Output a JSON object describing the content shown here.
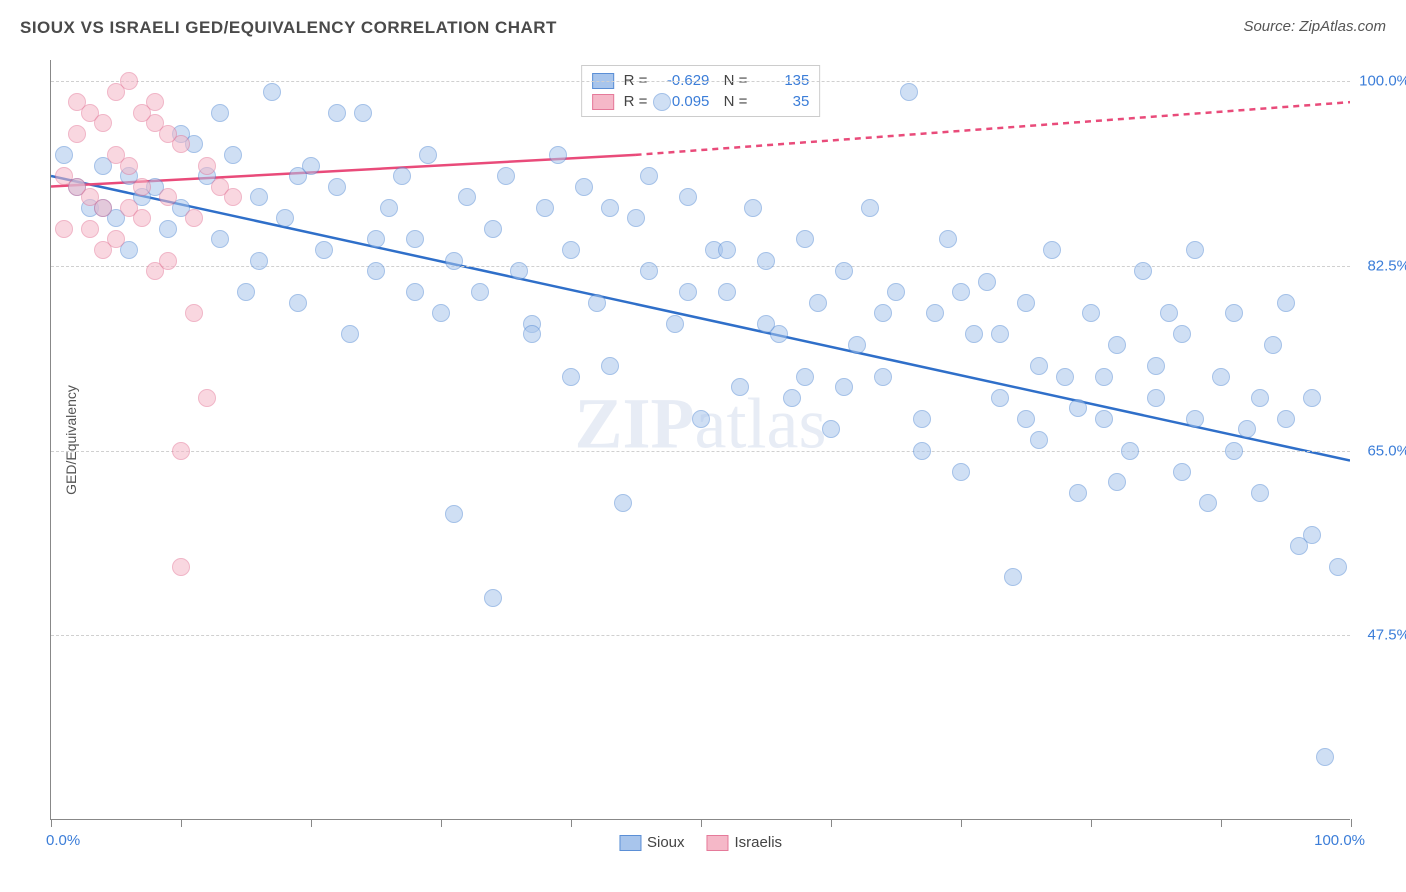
{
  "title": "SIOUX VS ISRAELI GED/EQUIVALENCY CORRELATION CHART",
  "source": "Source: ZipAtlas.com",
  "watermark": "ZIPatlas",
  "chart": {
    "type": "scatter",
    "y_axis_label": "GED/Equivalency",
    "x_start_label": "0.0%",
    "x_end_label": "100.0%",
    "xlim": [
      0,
      100
    ],
    "ylim": [
      30,
      102
    ],
    "y_gridlines": [
      47.5,
      65.0,
      82.5,
      100.0
    ],
    "y_tick_labels": [
      "47.5%",
      "65.0%",
      "82.5%",
      "100.0%"
    ],
    "y_tick_color": "#3b7dd8",
    "x_tick_positions": [
      0,
      10,
      20,
      30,
      40,
      50,
      60,
      70,
      80,
      90,
      100
    ],
    "grid_color": "#d0d0d0",
    "background_color": "#ffffff",
    "series": [
      {
        "name": "Sioux",
        "fill_color": "#a8c5ec",
        "stroke_color": "#5b8fd6",
        "line_color": "#2f6fc9",
        "R": "-0.629",
        "N": "135",
        "regression": {
          "x1": 0,
          "y1": 91,
          "x2": 100,
          "y2": 64,
          "dash": false
        },
        "points": [
          [
            2,
            90
          ],
          [
            3,
            88
          ],
          [
            4,
            92
          ],
          [
            5,
            87
          ],
          [
            6,
            91
          ],
          [
            7,
            89
          ],
          [
            8,
            90
          ],
          [
            9,
            86
          ],
          [
            10,
            88
          ],
          [
            11,
            94
          ],
          [
            12,
            91
          ],
          [
            13,
            85
          ],
          [
            14,
            93
          ],
          [
            15,
            80
          ],
          [
            16,
            89
          ],
          [
            17,
            99
          ],
          [
            18,
            87
          ],
          [
            19,
            79
          ],
          [
            20,
            92
          ],
          [
            21,
            84
          ],
          [
            22,
            90
          ],
          [
            23,
            76
          ],
          [
            24,
            97
          ],
          [
            25,
            82
          ],
          [
            26,
            88
          ],
          [
            27,
            91
          ],
          [
            28,
            85
          ],
          [
            29,
            93
          ],
          [
            30,
            78
          ],
          [
            31,
            59
          ],
          [
            32,
            89
          ],
          [
            33,
            80
          ],
          [
            34,
            51
          ],
          [
            35,
            91
          ],
          [
            36,
            82
          ],
          [
            37,
            77
          ],
          [
            38,
            88
          ],
          [
            39,
            93
          ],
          [
            40,
            84
          ],
          [
            41,
            90
          ],
          [
            42,
            79
          ],
          [
            43,
            73
          ],
          [
            44,
            60
          ],
          [
            45,
            87
          ],
          [
            46,
            82
          ],
          [
            47,
            98
          ],
          [
            48,
            77
          ],
          [
            49,
            89
          ],
          [
            50,
            68
          ],
          [
            51,
            84
          ],
          [
            52,
            80
          ],
          [
            53,
            71
          ],
          [
            54,
            88
          ],
          [
            55,
            83
          ],
          [
            56,
            76
          ],
          [
            57,
            70
          ],
          [
            58,
            85
          ],
          [
            59,
            79
          ],
          [
            60,
            67
          ],
          [
            61,
            82
          ],
          [
            62,
            75
          ],
          [
            63,
            88
          ],
          [
            64,
            72
          ],
          [
            65,
            80
          ],
          [
            66,
            99
          ],
          [
            67,
            68
          ],
          [
            68,
            78
          ],
          [
            69,
            85
          ],
          [
            70,
            63
          ],
          [
            71,
            76
          ],
          [
            72,
            81
          ],
          [
            73,
            70
          ],
          [
            74,
            53
          ],
          [
            75,
            79
          ],
          [
            76,
            66
          ],
          [
            77,
            84
          ],
          [
            78,
            72
          ],
          [
            79,
            61
          ],
          [
            80,
            78
          ],
          [
            81,
            68
          ],
          [
            82,
            75
          ],
          [
            83,
            65
          ],
          [
            84,
            82
          ],
          [
            85,
            70
          ],
          [
            86,
            78
          ],
          [
            87,
            63
          ],
          [
            88,
            84
          ],
          [
            89,
            60
          ],
          [
            90,
            72
          ],
          [
            91,
            78
          ],
          [
            92,
            67
          ],
          [
            93,
            61
          ],
          [
            94,
            75
          ],
          [
            95,
            68
          ],
          [
            96,
            56
          ],
          [
            97,
            70
          ],
          [
            98,
            36
          ],
          [
            99,
            54
          ],
          [
            95,
            79
          ],
          [
            88,
            68
          ],
          [
            82,
            62
          ],
          [
            76,
            73
          ],
          [
            70,
            80
          ],
          [
            64,
            78
          ],
          [
            58,
            72
          ],
          [
            52,
            84
          ],
          [
            46,
            91
          ],
          [
            40,
            72
          ],
          [
            34,
            86
          ],
          [
            28,
            80
          ],
          [
            22,
            97
          ],
          [
            16,
            83
          ],
          [
            10,
            95
          ],
          [
            4,
            88
          ],
          [
            1,
            93
          ],
          [
            6,
            84
          ],
          [
            13,
            97
          ],
          [
            19,
            91
          ],
          [
            25,
            85
          ],
          [
            31,
            83
          ],
          [
            37,
            76
          ],
          [
            43,
            88
          ],
          [
            49,
            80
          ],
          [
            55,
            77
          ],
          [
            61,
            71
          ],
          [
            67,
            65
          ],
          [
            73,
            76
          ],
          [
            79,
            69
          ],
          [
            85,
            73
          ],
          [
            91,
            65
          ],
          [
            97,
            57
          ],
          [
            93,
            70
          ],
          [
            87,
            76
          ],
          [
            81,
            72
          ],
          [
            75,
            68
          ]
        ]
      },
      {
        "name": "Israelis",
        "fill_color": "#f5b8c8",
        "stroke_color": "#e57a9a",
        "line_color": "#e94b7a",
        "R": "0.095",
        "N": "35",
        "regression": {
          "x1": 0,
          "y1": 90,
          "x2": 45,
          "y2": 93,
          "dash": false
        },
        "regression_ext": {
          "x1": 45,
          "y1": 93,
          "x2": 100,
          "y2": 98,
          "dash": true
        },
        "points": [
          [
            1,
            91
          ],
          [
            2,
            95
          ],
          [
            3,
            97
          ],
          [
            4,
            88
          ],
          [
            5,
            99
          ],
          [
            6,
            92
          ],
          [
            7,
            90
          ],
          [
            8,
            96
          ],
          [
            9,
            89
          ],
          [
            10,
            94
          ],
          [
            3,
            86
          ],
          [
            5,
            93
          ],
          [
            7,
            97
          ],
          [
            2,
            90
          ],
          [
            4,
            84
          ],
          [
            6,
            88
          ],
          [
            8,
            82
          ],
          [
            9,
            95
          ],
          [
            10,
            54
          ],
          [
            10,
            65
          ],
          [
            11,
            78
          ],
          [
            12,
            70
          ],
          [
            13,
            90
          ],
          [
            8,
            98
          ],
          [
            6,
            100
          ],
          [
            11,
            87
          ],
          [
            4,
            96
          ],
          [
            2,
            98
          ],
          [
            1,
            86
          ],
          [
            3,
            89
          ],
          [
            5,
            85
          ],
          [
            7,
            87
          ],
          [
            9,
            83
          ],
          [
            12,
            92
          ],
          [
            14,
            89
          ]
        ]
      }
    ],
    "bottom_legend": [
      {
        "label": "Sioux",
        "fill": "#a8c5ec",
        "stroke": "#5b8fd6"
      },
      {
        "label": "Israelis",
        "fill": "#f5b8c8",
        "stroke": "#e57a9a"
      }
    ]
  }
}
